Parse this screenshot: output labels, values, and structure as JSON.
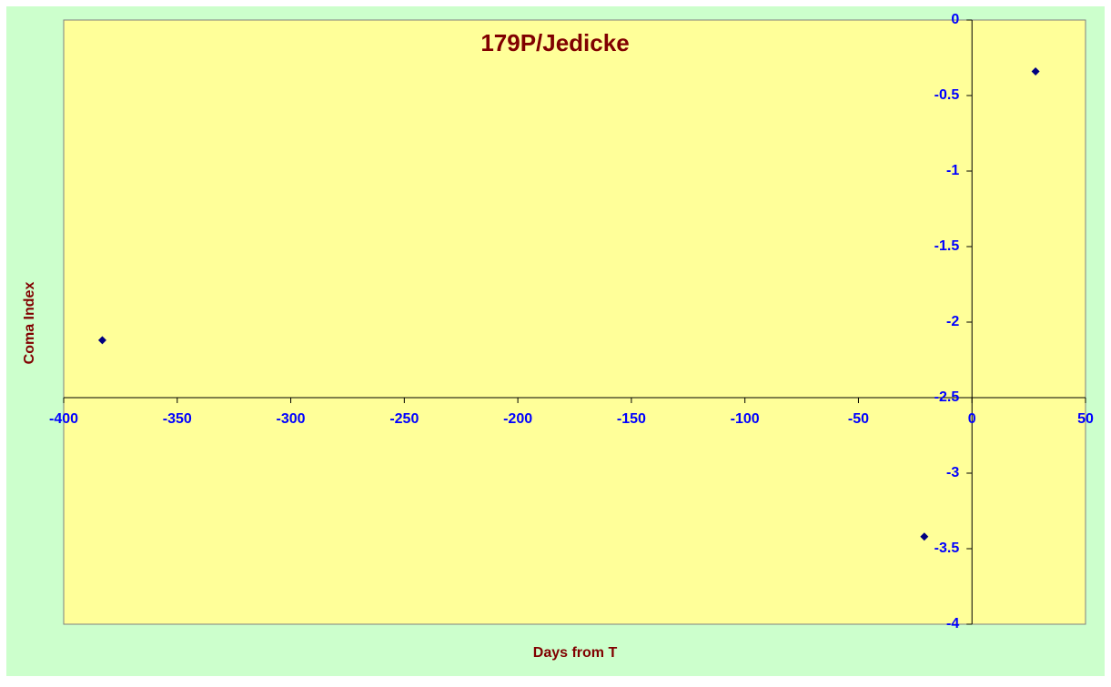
{
  "chart_data": {
    "type": "scatter",
    "title": "179P/Jedicke",
    "x_label": "Days from T",
    "y_label": "Coma Index",
    "series": [
      {
        "name": "Coma Index",
        "color": "#000080",
        "x": [
          -383,
          -21,
          28
        ],
        "values": [
          -2.12,
          -3.42,
          -0.34
        ]
      }
    ],
    "xlim": [
      -400,
      50
    ],
    "xticks": [
      -400,
      -350,
      -300,
      -250,
      -200,
      -150,
      -100,
      -50,
      0,
      50
    ],
    "ylim": [
      -4,
      0
    ],
    "yticks": [
      0,
      -0.5,
      -1,
      -1.5,
      -2,
      -2.5,
      -3,
      -3.5,
      -4
    ],
    "x_axis_crosses_y": -2.5,
    "y_axis_crosses_x": 0,
    "plot_color": "#ffff99",
    "background_color": "#ccffcc",
    "tick_color": "#0000ff",
    "text_color": "#800000"
  }
}
